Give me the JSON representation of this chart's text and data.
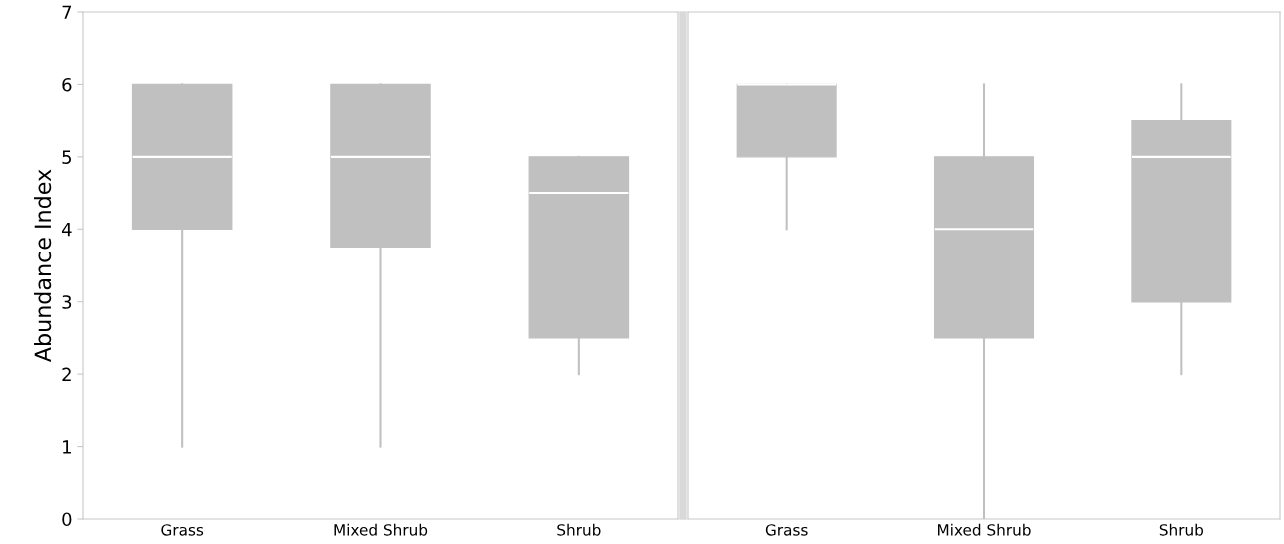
{
  "chart_data": [
    {
      "type": "box",
      "ylabel": "Abundance Index",
      "categories": [
        "Grass",
        "Mixed Shrub",
        "Shrub"
      ],
      "ylim": [
        0,
        7
      ],
      "yticks": [
        0,
        1,
        2,
        3,
        4,
        5,
        6,
        7
      ],
      "grid": false,
      "color": "#c0c0c0",
      "boxes": [
        {
          "low": 1,
          "q1": 4,
          "median": 5,
          "q3": 6,
          "high": 6
        },
        {
          "low": 1,
          "q1": 3.75,
          "median": 5,
          "q3": 6,
          "high": 6
        },
        {
          "low": 2,
          "q1": 2.5,
          "median": 4.5,
          "q3": 5,
          "high": 5
        }
      ]
    },
    {
      "type": "box",
      "categories": [
        "Grass",
        "Mixed Shrub",
        "Shrub"
      ],
      "ylim": [
        0,
        7
      ],
      "tick_labels": "x",
      "grid": false,
      "color": "#c0c0c0",
      "boxes": [
        {
          "low": 4,
          "q1": 5,
          "median": 6,
          "q3": 6,
          "high": 6
        },
        {
          "low": 0,
          "q1": 2.5,
          "median": 4,
          "q3": 5,
          "high": 6
        },
        {
          "low": 2,
          "q1": 3,
          "median": 5,
          "q3": 5.5,
          "high": 6
        }
      ]
    }
  ]
}
